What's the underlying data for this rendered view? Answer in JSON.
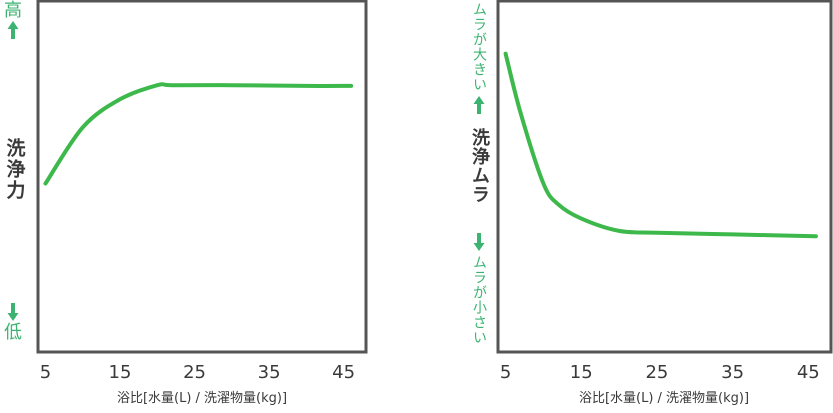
{
  "colors": {
    "line": "#3db84a",
    "accent": "#3cb371",
    "frame": "#555555",
    "text": "#3a3a3a"
  },
  "chart_data": [
    {
      "type": "line",
      "title": "",
      "ylabel": "洗浄力",
      "y_high_label": "高",
      "y_low_label": "低",
      "xlabel": "浴比[水量(L) / 洗濯物量(kg)]",
      "xticks": [
        "5",
        "15",
        "25",
        "35",
        "45"
      ],
      "xlim": [
        4,
        48
      ],
      "ylim": [
        0,
        100
      ],
      "grid": false,
      "series": [
        {
          "x": [
            5,
            10,
            15,
            20,
            22,
            30,
            40,
            46
          ],
          "y": [
            48,
            64,
            72,
            76,
            76,
            76,
            75.8,
            75.8
          ]
        }
      ]
    },
    {
      "type": "line",
      "title": "",
      "ylabel": "洗浄ムラ",
      "y_high_label": "ムラが大きい",
      "y_low_label": "ムラが小さい",
      "xlabel": "浴比[水量(L) / 洗濯物量(kg)]",
      "xticks": [
        "5",
        "15",
        "25",
        "35",
        "45"
      ],
      "xlim": [
        4,
        48
      ],
      "ylim": [
        0,
        100
      ],
      "grid": false,
      "series": [
        {
          "x": [
            5,
            7,
            10,
            12,
            15,
            20,
            25,
            35,
            46
          ],
          "y": [
            85,
            68,
            48,
            42,
            38,
            34.5,
            34,
            33.5,
            33
          ]
        }
      ]
    }
  ]
}
